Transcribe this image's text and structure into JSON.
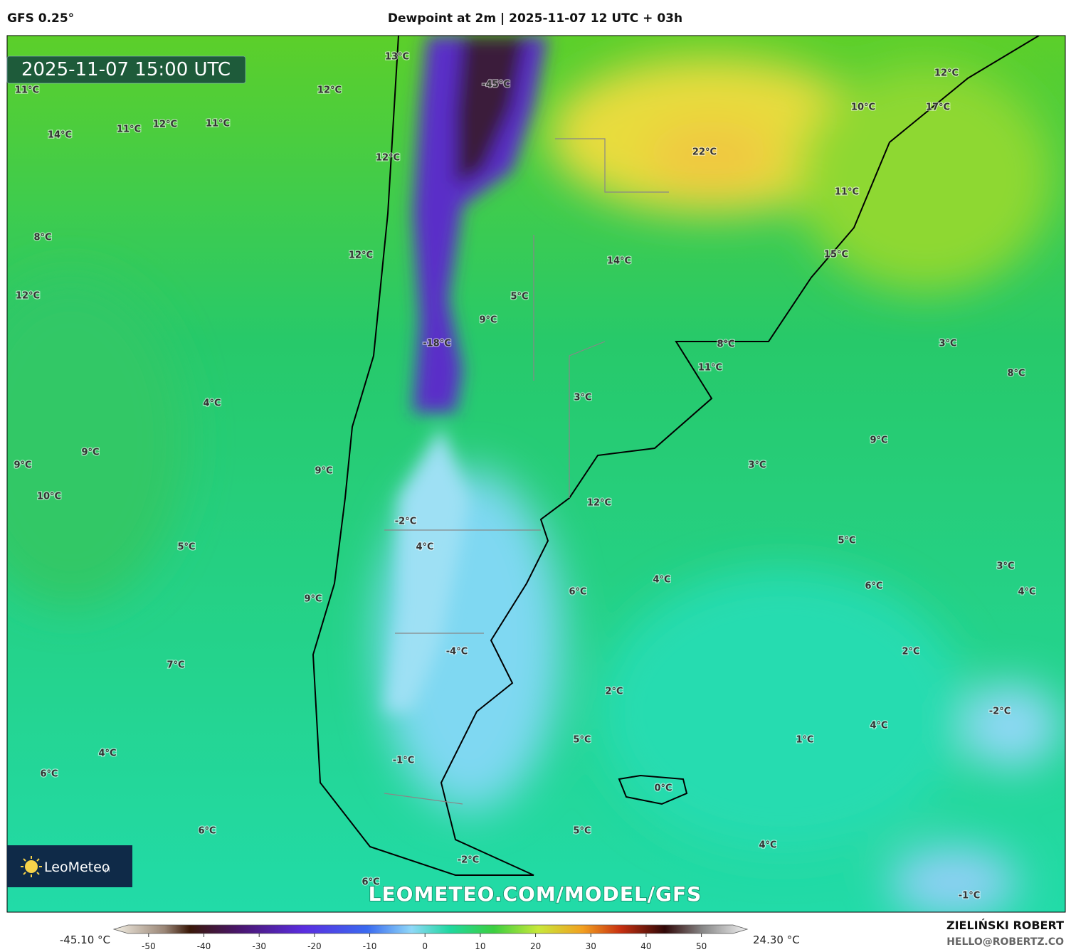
{
  "header": {
    "model": "GFS 0.25°",
    "title": "Dewpoint at 2m | 2025-11-07 12 UTC + 03h"
  },
  "map": {
    "valid_time": "2025-11-07 15:00 UTC",
    "labels": [
      "13°C",
      "-45°C",
      "12°C",
      "10°C",
      "17°C",
      "11°C",
      "12°C",
      "14°C",
      "11°C",
      "12°C",
      "11°C",
      "12°C",
      "22°C",
      "11°C",
      "8°C",
      "12°C",
      "14°C",
      "15°C",
      "12°C",
      "5°C",
      "9°C",
      "-18°C",
      "8°C",
      "3°C",
      "11°C",
      "8°C",
      "3°C",
      "4°C",
      "9°C",
      "9°C",
      "9°C",
      "9°C",
      "3°C",
      "10°C",
      "12°C",
      "-2°C",
      "5°C",
      "5°C",
      "4°C",
      "3°C",
      "4°C",
      "6°C",
      "6°C",
      "4°C",
      "9°C",
      "-4°C",
      "2°C",
      "7°C",
      "2°C",
      "-2°C",
      "4°C",
      "1°C",
      "5°C",
      "4°C",
      "-1°C",
      "6°C",
      "0°C",
      "6°C",
      "5°C",
      "4°C",
      "-2°C",
      "6°C",
      "-1°C"
    ],
    "logo": "LeoMeteo",
    "logo_suffix": "pl",
    "watermark": "LEOMETEO.COM/MODEL/GFS"
  },
  "colorbar": {
    "min_label": "-45.10 °C",
    "max_label": "24.30 °C",
    "lim": [
      -55,
      57
    ],
    "ticks": [
      -50,
      -40,
      -30,
      -20,
      -10,
      0,
      10,
      20,
      30,
      40,
      50
    ]
  },
  "footer": {
    "author": "ZIELIŃSKI ROBERT",
    "contact": "HELLO@ROBERTZ.CO"
  }
}
